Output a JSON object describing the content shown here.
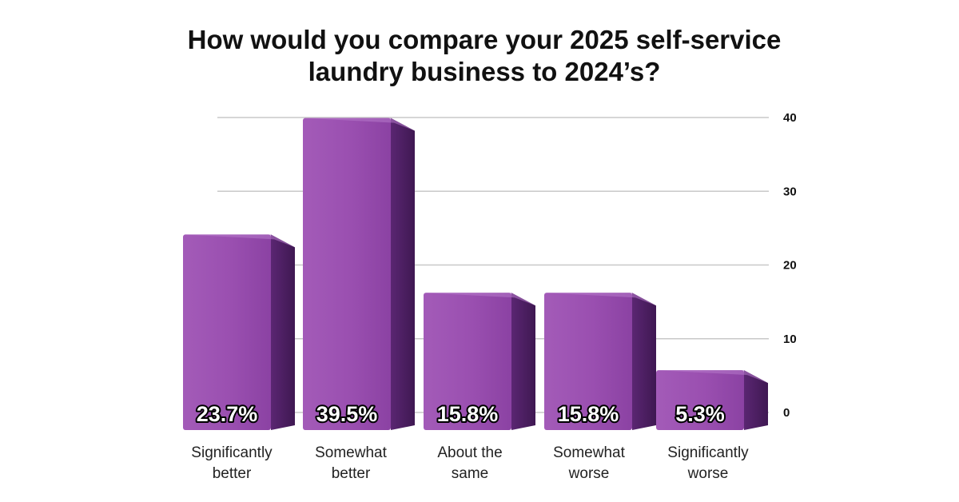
{
  "chart_data": {
    "type": "bar",
    "title_lines": [
      "How would you compare your 2025 self-service",
      "laundry business to 2024’s?"
    ],
    "categories": [
      [
        "Significantly",
        "better"
      ],
      [
        "Somewhat",
        "better"
      ],
      [
        "About the",
        "same"
      ],
      [
        "Somewhat",
        "worse"
      ],
      [
        "Significantly",
        "worse"
      ]
    ],
    "values": [
      23.7,
      39.5,
      15.8,
      15.8,
      5.3
    ],
    "value_labels": [
      "23.7%",
      "39.5%",
      "15.8%",
      "15.8%",
      "5.3%"
    ],
    "y_ticks": [
      "0",
      "10",
      "20",
      "30",
      "40"
    ],
    "ylim": [
      0,
      40
    ],
    "grid": true,
    "colors": {
      "bar_front": "#9b4fb0",
      "bar_side": "#4e1f63",
      "bar_top": "#b77acb",
      "grid": "#c8c8c8"
    }
  }
}
